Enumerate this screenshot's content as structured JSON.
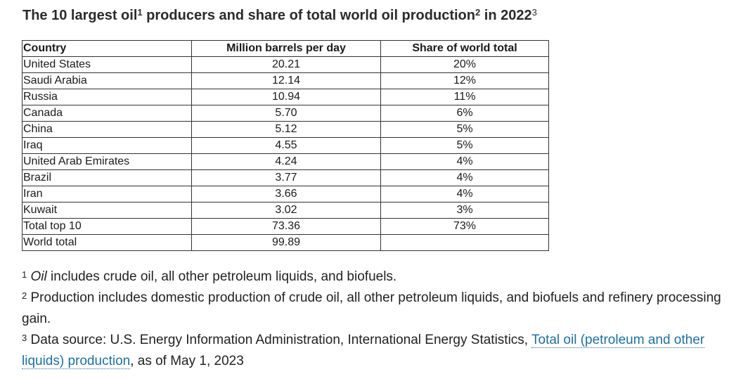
{
  "title": {
    "part1": "The 10 largest oil",
    "sup1": "1",
    "part2": " producers and share of total world oil production",
    "sup2": "2",
    "part3": " in 2022",
    "sup3": "3"
  },
  "table": {
    "headers": [
      "Country",
      "Million barrels per day",
      "Share of world total"
    ],
    "rows": [
      [
        "United States",
        "20.21",
        "20%"
      ],
      [
        "Saudi Arabia",
        "12.14",
        "12%"
      ],
      [
        "Russia",
        "10.94",
        "11%"
      ],
      [
        "Canada",
        "5.70",
        "6%"
      ],
      [
        "China",
        "5.12",
        "5%"
      ],
      [
        "Iraq",
        "4.55",
        "5%"
      ],
      [
        "United Arab Emirates",
        "4.24",
        "4%"
      ],
      [
        "Brazil",
        "3.77",
        "4%"
      ],
      [
        "Iran",
        "3.66",
        "4%"
      ],
      [
        "Kuwait",
        "3.02",
        "3%"
      ],
      [
        "Total top 10",
        "73.36",
        "73%"
      ],
      [
        "World total",
        "99.89",
        ""
      ]
    ]
  },
  "footnotes": {
    "n1": {
      "marker": "1",
      "italic": "Oil",
      "text": " includes crude oil, all other petroleum liquids, and biofuels."
    },
    "n2": {
      "marker": "2",
      "text": " Production includes domestic production of crude oil, all other petroleum liquids, and biofuels and refinery processing gain."
    },
    "n3": {
      "marker": "3",
      "text_before": " Data source: U.S. Energy Information Administration, International Energy Statistics, ",
      "link": "Total oil (petroleum and other liquids) production",
      "text_after": ", as of May 1, 2023"
    }
  },
  "colors": {
    "link": "#1f6f9f",
    "border": "#333333"
  }
}
